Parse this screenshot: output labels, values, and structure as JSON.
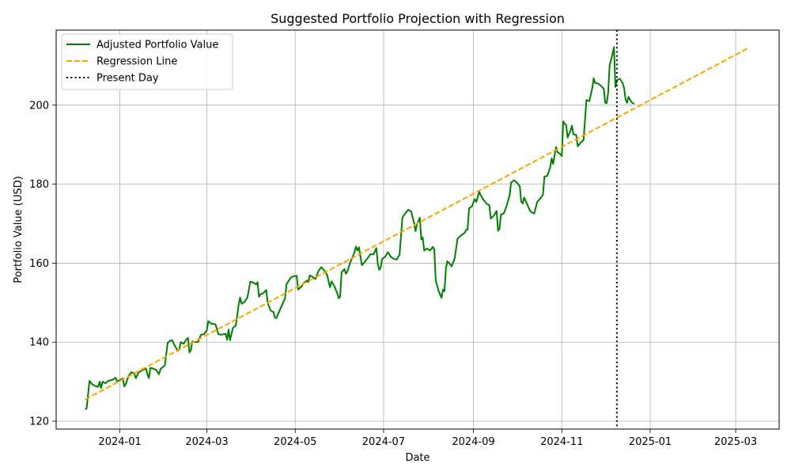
{
  "chart_data": {
    "type": "line",
    "title": "Suggested Portfolio Projection with Regression",
    "xlabel": "Date",
    "ylabel": "Portfolio Value (USD)",
    "xlim": [
      "2023-11-18",
      "2025-03-31"
    ],
    "ylim": [
      118,
      219
    ],
    "grid": true,
    "legend_position": "top-left",
    "x_ticks": [
      "2024-01",
      "2024-03",
      "2024-05",
      "2024-07",
      "2024-09",
      "2024-11",
      "2025-01",
      "2025-03"
    ],
    "y_ticks": [
      120,
      140,
      160,
      180,
      200
    ],
    "series": [
      {
        "name": "Adjusted Portfolio Value",
        "style": "solid",
        "color": "#008000",
        "points": [
          [
            "2023-12-08",
            123.0
          ],
          [
            "2023-12-09",
            123.2
          ],
          [
            "2023-12-11",
            130.2
          ],
          [
            "2023-12-13",
            129.3
          ],
          [
            "2023-12-15",
            128.9
          ],
          [
            "2023-12-17",
            128.7
          ],
          [
            "2023-12-18",
            130.0
          ],
          [
            "2023-12-19",
            128.4
          ],
          [
            "2023-12-20",
            130.0
          ],
          [
            "2023-12-22",
            129.6
          ],
          [
            "2023-12-24",
            130.2
          ],
          [
            "2023-12-27",
            130.5
          ],
          [
            "2023-12-29",
            131.0
          ],
          [
            "2023-12-30",
            130.1
          ],
          [
            "2024-01-01",
            130.4
          ],
          [
            "2024-01-03",
            130.8
          ],
          [
            "2024-01-04",
            128.8
          ],
          [
            "2024-01-05",
            129.4
          ],
          [
            "2024-01-07",
            131.5
          ],
          [
            "2024-01-09",
            132.4
          ],
          [
            "2024-01-11",
            132.0
          ],
          [
            "2024-01-12",
            130.9
          ],
          [
            "2024-01-14",
            132.4
          ],
          [
            "2024-01-17",
            133.0
          ],
          [
            "2024-01-19",
            133.3
          ],
          [
            "2024-01-20",
            131.9
          ],
          [
            "2024-01-21",
            130.9
          ],
          [
            "2024-01-22",
            133.5
          ],
          [
            "2024-01-24",
            133.3
          ],
          [
            "2024-01-26",
            133.0
          ],
          [
            "2024-01-28",
            131.9
          ],
          [
            "2024-01-29",
            133.2
          ],
          [
            "2024-02-01",
            134.1
          ],
          [
            "2024-02-03",
            139.9
          ],
          [
            "2024-02-05",
            140.4
          ],
          [
            "2024-02-06",
            140.5
          ],
          [
            "2024-02-08",
            139.0
          ],
          [
            "2024-02-10",
            137.8
          ],
          [
            "2024-02-11",
            138.2
          ],
          [
            "2024-02-12",
            140.0
          ],
          [
            "2024-02-14",
            139.6
          ],
          [
            "2024-02-16",
            140.8
          ],
          [
            "2024-02-17",
            141.1
          ],
          [
            "2024-02-18",
            137.4
          ],
          [
            "2024-02-19",
            138.0
          ],
          [
            "2024-02-20",
            140.2
          ],
          [
            "2024-02-22",
            140.0
          ],
          [
            "2024-02-24",
            140.1
          ],
          [
            "2024-02-26",
            141.9
          ],
          [
            "2024-02-28",
            142.0
          ],
          [
            "2024-03-01",
            143.0
          ],
          [
            "2024-03-02",
            145.3
          ],
          [
            "2024-03-04",
            144.7
          ],
          [
            "2024-03-07",
            144.5
          ],
          [
            "2024-03-09",
            142.0
          ],
          [
            "2024-03-11",
            141.9
          ],
          [
            "2024-03-14",
            142.1
          ],
          [
            "2024-03-15",
            140.6
          ],
          [
            "2024-03-16",
            143.2
          ],
          [
            "2024-03-17",
            140.5
          ],
          [
            "2024-03-19",
            143.6
          ],
          [
            "2024-03-21",
            144.2
          ],
          [
            "2024-03-23",
            149.6
          ],
          [
            "2024-03-24",
            151.3
          ],
          [
            "2024-03-25",
            149.7
          ],
          [
            "2024-03-27",
            150.2
          ],
          [
            "2024-03-29",
            151.3
          ],
          [
            "2024-03-31",
            155.3
          ],
          [
            "2024-04-02",
            155.1
          ],
          [
            "2024-04-04",
            154.6
          ],
          [
            "2024-04-05",
            155.2
          ],
          [
            "2024-04-06",
            151.5
          ],
          [
            "2024-04-07",
            152.1
          ],
          [
            "2024-04-09",
            152.4
          ],
          [
            "2024-04-11",
            153.2
          ],
          [
            "2024-04-12",
            150.0
          ],
          [
            "2024-04-14",
            148.0
          ],
          [
            "2024-04-16",
            147.6
          ],
          [
            "2024-04-17",
            146.2
          ],
          [
            "2024-04-18",
            146.1
          ],
          [
            "2024-04-20",
            147.8
          ],
          [
            "2024-04-22",
            149.5
          ],
          [
            "2024-04-24",
            151.1
          ],
          [
            "2024-04-25",
            154.7
          ],
          [
            "2024-04-27",
            155.8
          ],
          [
            "2024-04-28",
            156.4
          ],
          [
            "2024-04-30",
            156.7
          ],
          [
            "2024-05-02",
            156.8
          ],
          [
            "2024-05-03",
            153.3
          ],
          [
            "2024-05-05",
            154.0
          ],
          [
            "2024-05-07",
            155.0
          ],
          [
            "2024-05-09",
            155.6
          ],
          [
            "2024-05-10",
            155.2
          ],
          [
            "2024-05-11",
            156.9
          ],
          [
            "2024-05-13",
            156.5
          ],
          [
            "2024-05-15",
            156.0
          ],
          [
            "2024-05-17",
            158.0
          ],
          [
            "2024-05-19",
            159.0
          ],
          [
            "2024-05-20",
            158.6
          ],
          [
            "2024-05-22",
            157.7
          ],
          [
            "2024-05-23",
            157.0
          ],
          [
            "2024-05-25",
            153.9
          ],
          [
            "2024-05-26",
            155.4
          ],
          [
            "2024-05-28",
            154.2
          ],
          [
            "2024-05-30",
            152.4
          ],
          [
            "2024-05-31",
            151.1
          ],
          [
            "2024-06-01",
            151.5
          ],
          [
            "2024-06-02",
            157.7
          ],
          [
            "2024-06-04",
            158.5
          ],
          [
            "2024-06-05",
            157.3
          ],
          [
            "2024-06-06",
            157.9
          ],
          [
            "2024-06-08",
            160.2
          ],
          [
            "2024-06-10",
            161.9
          ],
          [
            "2024-06-11",
            162.9
          ],
          [
            "2024-06-12",
            164.2
          ],
          [
            "2024-06-13",
            163.2
          ],
          [
            "2024-06-14",
            164.0
          ],
          [
            "2024-06-16",
            159.5
          ],
          [
            "2024-06-18",
            160.3
          ],
          [
            "2024-06-20",
            161.3
          ],
          [
            "2024-06-22",
            162.3
          ],
          [
            "2024-06-24",
            162.2
          ],
          [
            "2024-06-26",
            163.8
          ],
          [
            "2024-06-27",
            159.8
          ],
          [
            "2024-06-28",
            158.3
          ],
          [
            "2024-06-29",
            158.9
          ],
          [
            "2024-06-30",
            161.1
          ],
          [
            "2024-07-02",
            161.6
          ],
          [
            "2024-07-04",
            162.8
          ],
          [
            "2024-07-06",
            161.6
          ],
          [
            "2024-07-08",
            161.1
          ],
          [
            "2024-07-10",
            160.9
          ],
          [
            "2024-07-12",
            162.1
          ],
          [
            "2024-07-14",
            171.6
          ],
          [
            "2024-07-16",
            172.6
          ],
          [
            "2024-07-18",
            173.5
          ],
          [
            "2024-07-20",
            173.1
          ],
          [
            "2024-07-22",
            170.2
          ],
          [
            "2024-07-23",
            168.1
          ],
          [
            "2024-07-24",
            169.8
          ],
          [
            "2024-07-26",
            171.5
          ],
          [
            "2024-07-27",
            166.0
          ],
          [
            "2024-07-28",
            166.5
          ],
          [
            "2024-07-29",
            163.2
          ],
          [
            "2024-07-31",
            163.7
          ],
          [
            "2024-08-02",
            163.2
          ],
          [
            "2024-08-04",
            164.1
          ],
          [
            "2024-08-05",
            163.5
          ],
          [
            "2024-08-06",
            155.6
          ],
          [
            "2024-08-08",
            153.0
          ],
          [
            "2024-08-10",
            151.2
          ],
          [
            "2024-08-11",
            153.3
          ],
          [
            "2024-08-12",
            152.9
          ],
          [
            "2024-08-13",
            158.6
          ],
          [
            "2024-08-14",
            160.5
          ],
          [
            "2024-08-16",
            159.7
          ],
          [
            "2024-08-17",
            159.2
          ],
          [
            "2024-08-19",
            161.1
          ],
          [
            "2024-08-21",
            166.1
          ],
          [
            "2024-08-23",
            166.9
          ],
          [
            "2024-08-25",
            167.4
          ],
          [
            "2024-08-26",
            167.7
          ],
          [
            "2024-08-27",
            168.4
          ],
          [
            "2024-08-28",
            168.5
          ],
          [
            "2024-08-29",
            173.9
          ],
          [
            "2024-08-31",
            174.4
          ],
          [
            "2024-09-01",
            175.4
          ],
          [
            "2024-09-02",
            176.2
          ],
          [
            "2024-09-03",
            175.5
          ],
          [
            "2024-09-05",
            178.1
          ],
          [
            "2024-09-06",
            177.2
          ],
          [
            "2024-09-08",
            176.0
          ],
          [
            "2024-09-10",
            175.1
          ],
          [
            "2024-09-12",
            174.6
          ],
          [
            "2024-09-13",
            171.3
          ],
          [
            "2024-09-15",
            172.0
          ],
          [
            "2024-09-17",
            173.2
          ],
          [
            "2024-09-18",
            168.2
          ],
          [
            "2024-09-19",
            168.7
          ],
          [
            "2024-09-20",
            172.3
          ],
          [
            "2024-09-22",
            172.6
          ],
          [
            "2024-09-24",
            174.6
          ],
          [
            "2024-09-26",
            177.2
          ],
          [
            "2024-09-27",
            180.4
          ],
          [
            "2024-09-29",
            181.0
          ],
          [
            "2024-10-01",
            180.4
          ],
          [
            "2024-10-03",
            179.5
          ],
          [
            "2024-10-04",
            175.6
          ],
          [
            "2024-10-05",
            175.1
          ],
          [
            "2024-10-06",
            176.6
          ],
          [
            "2024-10-08",
            175.0
          ],
          [
            "2024-10-10",
            173.3
          ],
          [
            "2024-10-12",
            172.7
          ],
          [
            "2024-10-13",
            172.6
          ],
          [
            "2024-10-15",
            175.5
          ],
          [
            "2024-10-17",
            176.3
          ],
          [
            "2024-10-19",
            177.3
          ],
          [
            "2024-10-20",
            181.9
          ],
          [
            "2024-10-22",
            182.1
          ],
          [
            "2024-10-24",
            184.3
          ],
          [
            "2024-10-25",
            186.5
          ],
          [
            "2024-10-26",
            185.1
          ],
          [
            "2024-10-28",
            189.4
          ],
          [
            "2024-10-29",
            188.1
          ],
          [
            "2024-10-31",
            187.6
          ],
          [
            "2024-11-01",
            187.1
          ],
          [
            "2024-11-02",
            195.9
          ],
          [
            "2024-11-03",
            195.3
          ],
          [
            "2024-11-04",
            195.0
          ],
          [
            "2024-11-05",
            191.8
          ],
          [
            "2024-11-07",
            193.5
          ],
          [
            "2024-11-08",
            194.8
          ],
          [
            "2024-11-09",
            192.6
          ],
          [
            "2024-11-11",
            192.4
          ],
          [
            "2024-11-12",
            189.6
          ],
          [
            "2024-11-14",
            190.5
          ],
          [
            "2024-11-16",
            191.2
          ],
          [
            "2024-11-18",
            201.3
          ],
          [
            "2024-11-20",
            201.0
          ],
          [
            "2024-11-22",
            204.3
          ],
          [
            "2024-11-23",
            206.8
          ],
          [
            "2024-11-24",
            205.6
          ],
          [
            "2024-11-26",
            205.5
          ],
          [
            "2024-11-28",
            204.9
          ],
          [
            "2024-11-30",
            204.1
          ],
          [
            "2024-12-01",
            200.6
          ],
          [
            "2024-12-02",
            200.5
          ],
          [
            "2024-12-03",
            203.2
          ],
          [
            "2024-12-04",
            210.1
          ],
          [
            "2024-12-06",
            212.9
          ],
          [
            "2024-12-07",
            214.7
          ],
          [
            "2024-12-08",
            204.6
          ],
          [
            "2024-12-09",
            206.3
          ],
          [
            "2024-12-11",
            206.7
          ],
          [
            "2024-12-13",
            205.6
          ],
          [
            "2024-12-14",
            204.3
          ],
          [
            "2024-12-15",
            201.5
          ],
          [
            "2024-12-16",
            200.6
          ],
          [
            "2024-12-17",
            202.1
          ],
          [
            "2024-12-19",
            200.8
          ],
          [
            "2024-12-21",
            200.3
          ]
        ]
      },
      {
        "name": "Regression Line",
        "style": "dashed",
        "color": "#FFA500",
        "points": [
          [
            "2023-12-08",
            125.5
          ],
          [
            "2025-03-10",
            214.5
          ]
        ]
      },
      {
        "name": "Present Day",
        "style": "dotted",
        "color": "#000000",
        "vertical_x": "2024-12-09"
      }
    ]
  }
}
